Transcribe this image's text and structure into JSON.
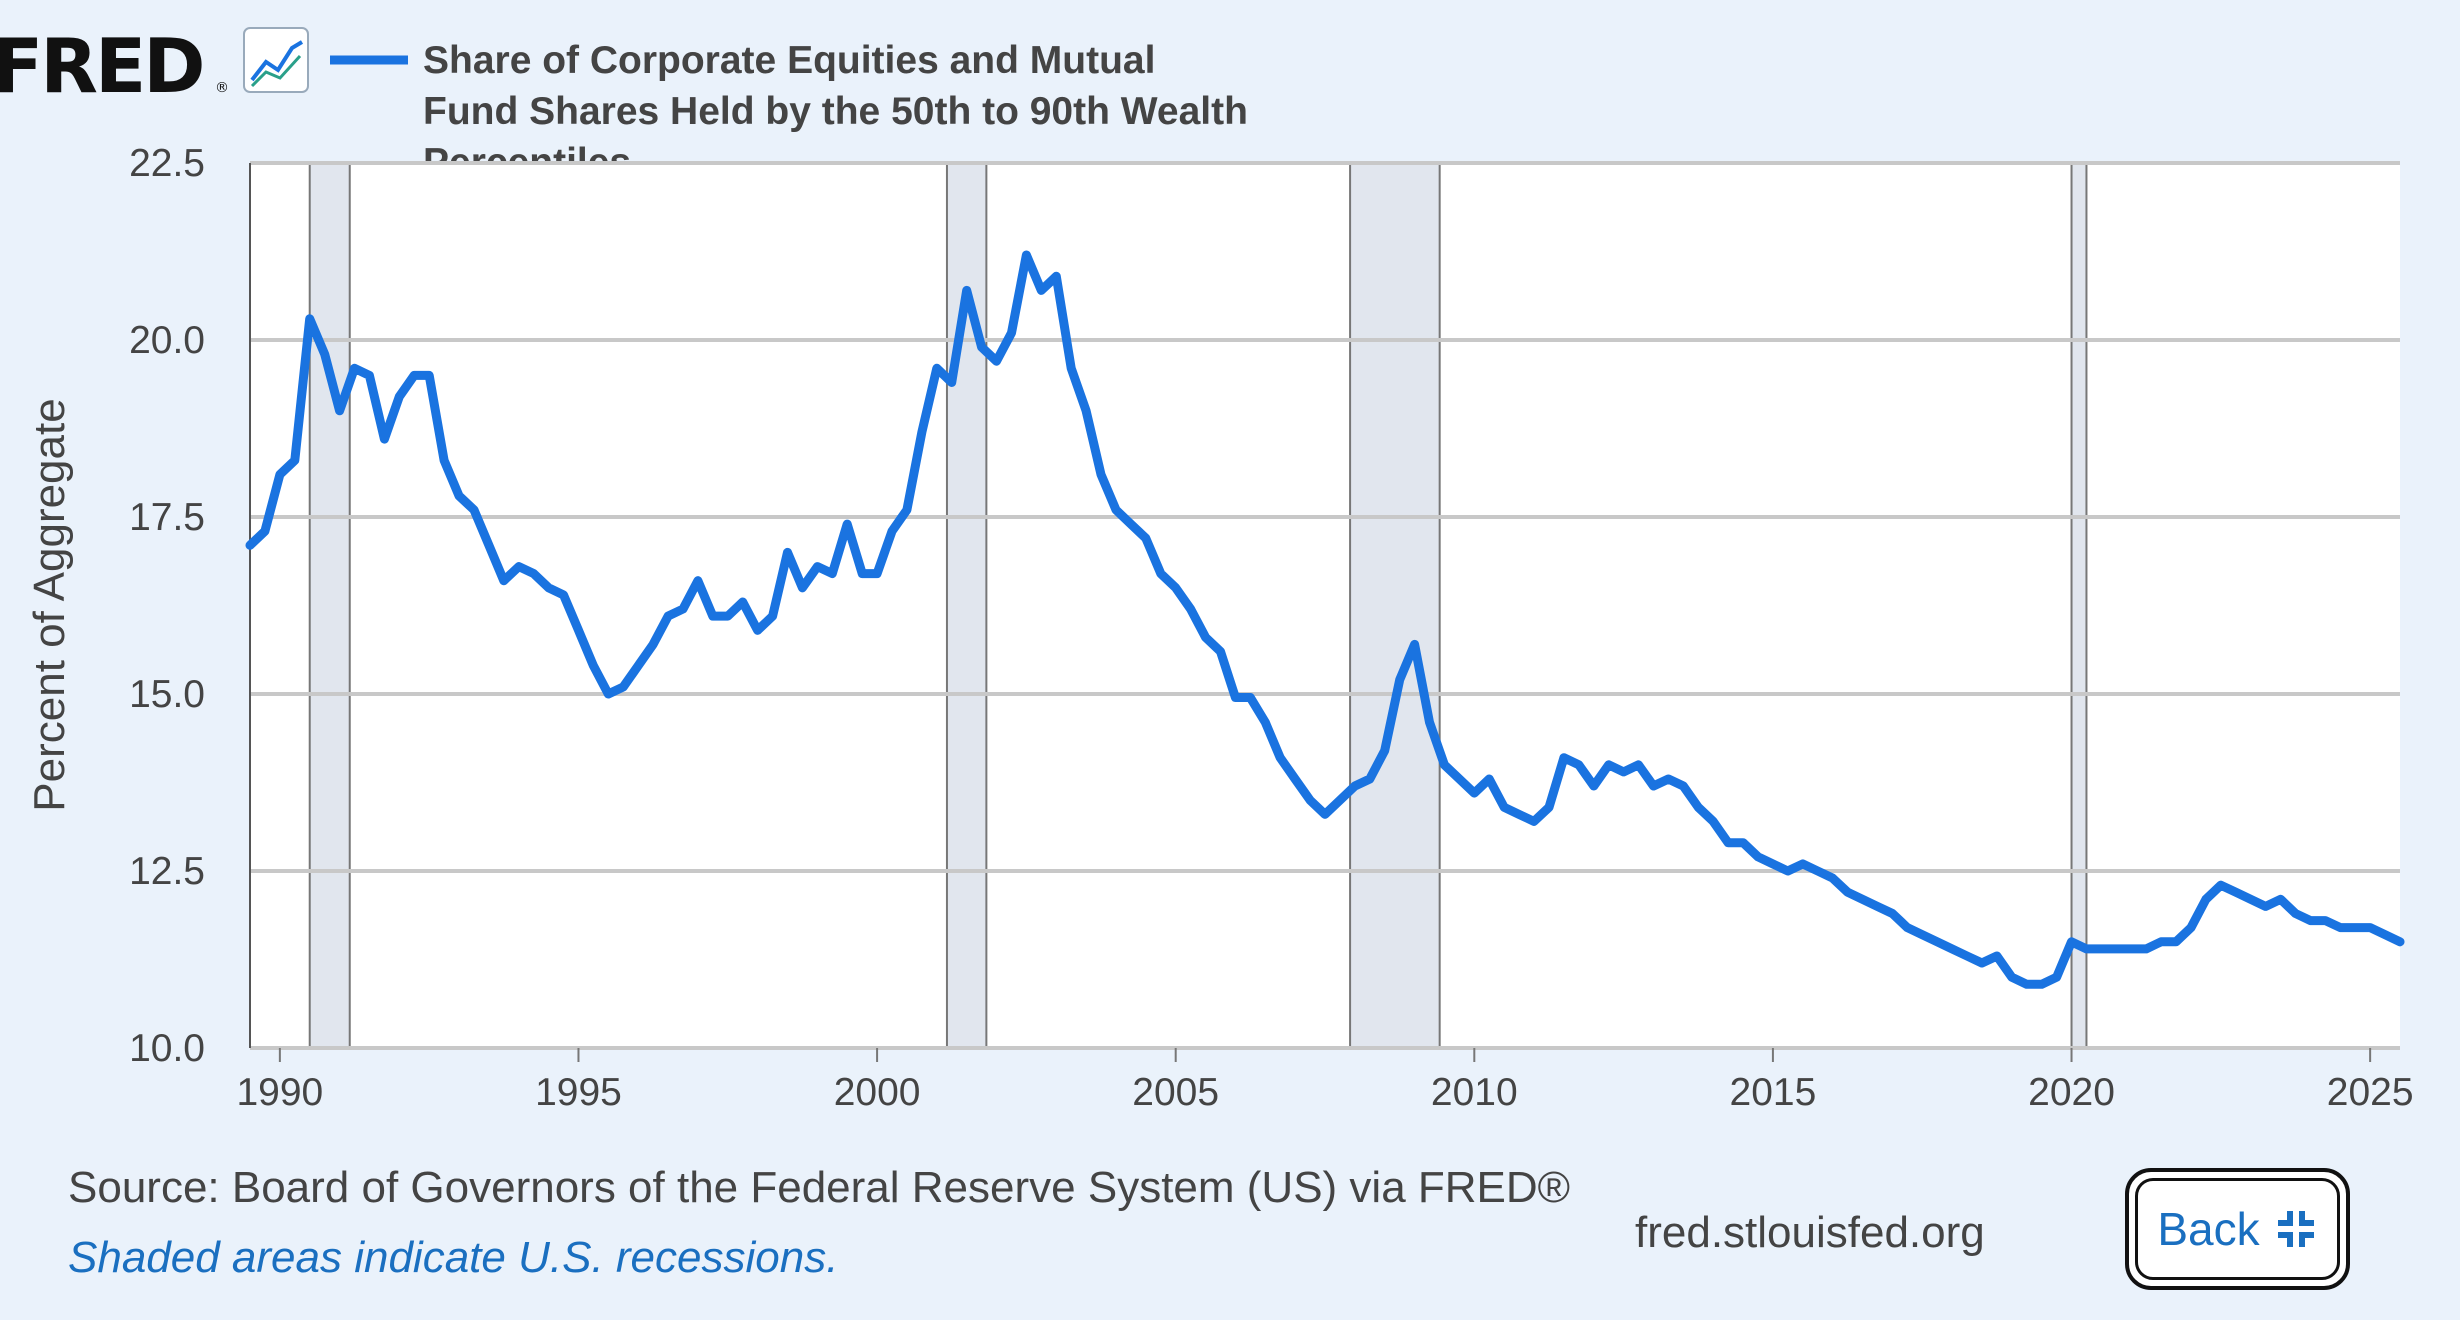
{
  "logo": {
    "text": "FRED",
    "registered": "®",
    "icon": "chart-line-icon"
  },
  "legend": {
    "lines": [
      "Share of Corporate Equities and Mutual",
      "Fund Shares Held by the 50th to 90th Wealth",
      "Percentiles"
    ],
    "color": "#1a73e0"
  },
  "chart_data": {
    "type": "line",
    "title": "Share of Corporate Equities and Mutual Fund Shares Held by the 50th to 90th Wealth Percentiles",
    "xlabel": "",
    "ylabel": "Percent of Aggregate",
    "xlim": [
      1989.5,
      2025.5
    ],
    "ylim": [
      10,
      22.5
    ],
    "x_ticks": [
      "1990",
      "1995",
      "2000",
      "2005",
      "2010",
      "2015",
      "2020",
      "2025"
    ],
    "y_ticks": [
      "10.0",
      "12.5",
      "15.0",
      "17.5",
      "20.0",
      "22.5"
    ],
    "grid": true,
    "recessions": [
      [
        1990.5,
        1991.17
      ],
      [
        2001.17,
        2001.83
      ],
      [
        2007.92,
        2009.42
      ],
      [
        2020.0,
        2020.25
      ]
    ],
    "series": [
      {
        "name": "Share of Corporate Equities and Mutual Fund Shares Held by the 50th to 90th Wealth Percentiles",
        "color": "#1a73e0",
        "x": [
          1989.5,
          1989.75,
          1990,
          1990.25,
          1990.5,
          1990.75,
          1991,
          1991.25,
          1991.5,
          1991.75,
          1992,
          1992.25,
          1992.5,
          1992.75,
          1993,
          1993.25,
          1993.5,
          1993.75,
          1994,
          1994.25,
          1994.5,
          1994.75,
          1995,
          1995.25,
          1995.5,
          1995.75,
          1996,
          1996.25,
          1996.5,
          1996.75,
          1997,
          1997.25,
          1997.5,
          1997.75,
          1998,
          1998.25,
          1998.5,
          1998.75,
          1999,
          1999.25,
          1999.5,
          1999.75,
          2000,
          2000.25,
          2000.5,
          2000.75,
          2001,
          2001.25,
          2001.5,
          2001.75,
          2002,
          2002.25,
          2002.5,
          2002.75,
          2003,
          2003.25,
          2003.5,
          2003.75,
          2004,
          2004.25,
          2004.5,
          2004.75,
          2005,
          2005.25,
          2005.5,
          2005.75,
          2006,
          2006.25,
          2006.5,
          2006.75,
          2007,
          2007.25,
          2007.5,
          2007.75,
          2008,
          2008.25,
          2008.5,
          2008.75,
          2009,
          2009.25,
          2009.5,
          2009.75,
          2010,
          2010.25,
          2010.5,
          2010.75,
          2011,
          2011.25,
          2011.5,
          2011.75,
          2012,
          2012.25,
          2012.5,
          2012.75,
          2013,
          2013.25,
          2013.5,
          2013.75,
          2014,
          2014.25,
          2014.5,
          2014.75,
          2015,
          2015.25,
          2015.5,
          2015.75,
          2016,
          2016.25,
          2016.5,
          2016.75,
          2017,
          2017.25,
          2017.5,
          2017.75,
          2018,
          2018.25,
          2018.5,
          2018.75,
          2019,
          2019.25,
          2019.5,
          2019.75,
          2020,
          2020.25,
          2020.5,
          2020.75,
          2021,
          2021.25,
          2021.5,
          2021.75,
          2022,
          2022.25,
          2022.5,
          2022.75,
          2023,
          2023.25,
          2023.5,
          2023.75,
          2024,
          2024.25,
          2024.5,
          2024.75,
          2025,
          2025.25,
          2025.5
        ],
        "values": [
          17.1,
          17.3,
          18.1,
          18.3,
          20.3,
          19.8,
          19.0,
          19.6,
          19.5,
          18.6,
          19.2,
          19.5,
          19.5,
          18.3,
          17.8,
          17.6,
          17.1,
          16.6,
          16.8,
          16.7,
          16.5,
          16.4,
          15.9,
          15.4,
          15.0,
          15.1,
          15.4,
          15.7,
          16.1,
          16.2,
          16.6,
          16.1,
          16.1,
          16.3,
          15.9,
          16.1,
          17.0,
          16.5,
          16.8,
          16.7,
          17.4,
          16.7,
          16.7,
          17.3,
          17.6,
          18.7,
          19.6,
          19.4,
          20.7,
          19.9,
          19.7,
          20.1,
          21.2,
          20.7,
          20.9,
          19.6,
          19.0,
          18.1,
          17.6,
          17.4,
          17.2,
          16.7,
          16.5,
          16.2,
          15.8,
          15.6,
          14.95,
          14.95,
          14.6,
          14.1,
          13.8,
          13.5,
          13.3,
          13.5,
          13.7,
          13.8,
          14.2,
          15.2,
          15.7,
          14.6,
          14.0,
          13.8,
          13.6,
          13.8,
          13.4,
          13.3,
          13.2,
          13.4,
          14.1,
          14.0,
          13.7,
          14.0,
          13.9,
          14.0,
          13.7,
          13.8,
          13.7,
          13.4,
          13.2,
          12.9,
          12.9,
          12.7,
          12.6,
          12.5,
          12.6,
          12.5,
          12.4,
          12.2,
          12.1,
          12.0,
          11.9,
          11.7,
          11.6,
          11.5,
          11.4,
          11.3,
          11.2,
          11.3,
          11.0,
          10.9,
          10.9,
          11.0,
          11.5,
          11.4,
          11.4,
          11.4,
          11.4,
          11.4,
          11.5,
          11.5,
          11.7,
          12.1,
          12.3,
          12.2,
          12.1,
          12.0,
          12.1,
          11.9,
          11.8,
          11.8,
          11.7,
          11.7,
          11.7,
          11.6,
          11.5
        ]
      }
    ]
  },
  "footer": {
    "source": "Source: Board of Governors of the Federal Reserve System (US) via FRED®",
    "note": "Shaded areas indicate U.S. recessions.",
    "site": "fred.stlouisfed.org",
    "back_label": "Back"
  }
}
